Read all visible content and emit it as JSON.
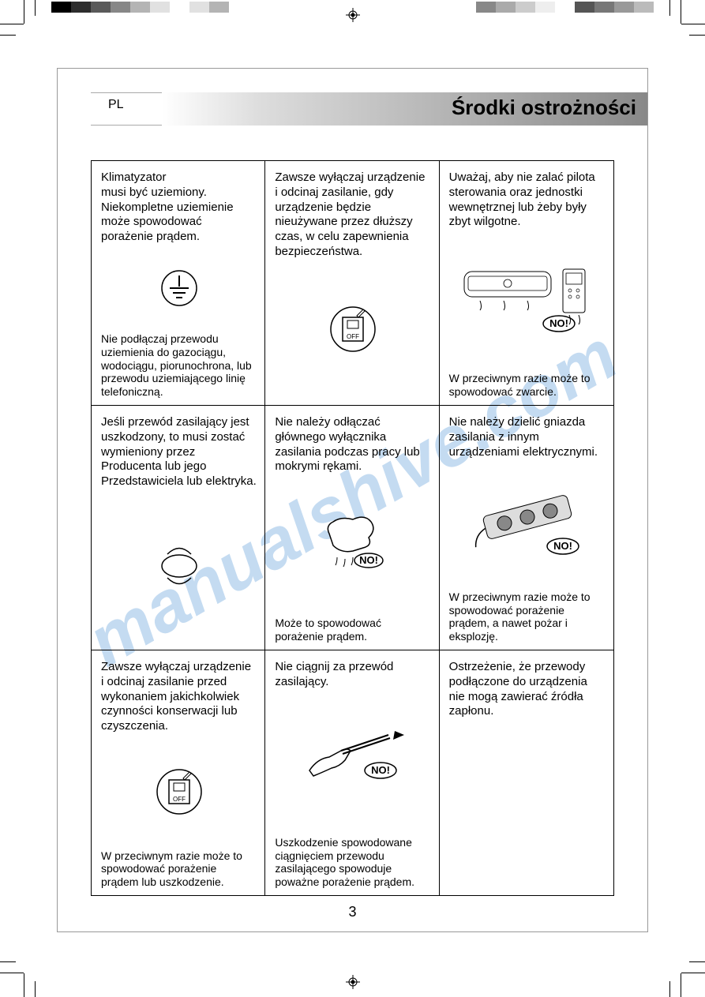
{
  "lang": "PL",
  "title": "Środki ostrożności",
  "page_number": "3",
  "watermark": "manualshive.com",
  "no_label": "NO!",
  "colorbar_left": [
    "#000000",
    "#2d2d2d",
    "#5a5a5a",
    "#878787",
    "#b4b4b4",
    "#e1e1e1",
    "#ffffff",
    "#e1e1e1",
    "#b4b4b4"
  ],
  "colorbar_right": [
    "#888888",
    "#aaaaaa",
    "#cccccc",
    "#eeeeee",
    "#ffffff",
    "#555555",
    "#777777",
    "#999999",
    "#bbbbbb"
  ],
  "cells": [
    {
      "main": "Klimatyzator\nmusi być uziemiony.\nNiekompletne uziemienie\nmoże spowodować\nporażenie prądem.",
      "sub": "Nie podłączaj przewodu uziemienia do gazociągu, wodociągu, piorunochrona, lub przewodu uziemiającego linię telefoniczną.",
      "icon": "ground"
    },
    {
      "main": "Zawsze wyłączaj urządzenie i odcinaj zasilanie, gdy urządzenie będzie nieużywane przez dłuższy czas, w celu zapewnienia bezpieczeństwa.",
      "sub": "",
      "icon": "switch_off"
    },
    {
      "main": "Uważaj, aby nie zalać pilota sterowania oraz jednostki wewnętrznej lub żeby były zbyt wilgotne.",
      "sub": "W przeciwnym razie może to spowodować zwarcie.",
      "icon": "ac_remote_no"
    },
    {
      "main": "Jeśli przewód zasilający jest uszkodzony, to musi zostać wymieniony przez Producenta lub jego Przedstawiciela lub elektryka.",
      "sub": "",
      "icon": "cable_loop"
    },
    {
      "main": "Nie należy odłączać głównego wyłącznika zasilania podczas pracy lub mokrymi rękami.",
      "sub": "Może to spowodować porażenie prądem.",
      "icon": "wet_hand_no"
    },
    {
      "main": "Nie należy dzielić gniazda zasilania z innym urządzeniami elektrycznymi.",
      "sub": "W przeciwnym razie może to spowodować porażenie prądem, a nawet pożar i eksplozję.",
      "icon": "power_strip_no"
    },
    {
      "main": "Zawsze wyłączaj urządzenie i odcinaj zasilanie przed wykonaniem jakichkolwiek czynności konserwacji lub czyszczenia.",
      "sub": "W przeciwnym razie może to spowodować porażenie prądem lub uszkodzenie.",
      "icon": "switch_off"
    },
    {
      "main": "Nie ciągnij za przewód zasilający.",
      "sub": "Uszkodzenie spowodowane ciągnięciem przewodu zasilającego spowoduje poważne porażenie prądem.",
      "icon": "pull_cord_no"
    },
    {
      "main": "Ostrzeżenie, że przewody podłączone do urządzenia nie mogą zawierać źródła zapłonu.",
      "sub": "",
      "icon": "none"
    }
  ]
}
